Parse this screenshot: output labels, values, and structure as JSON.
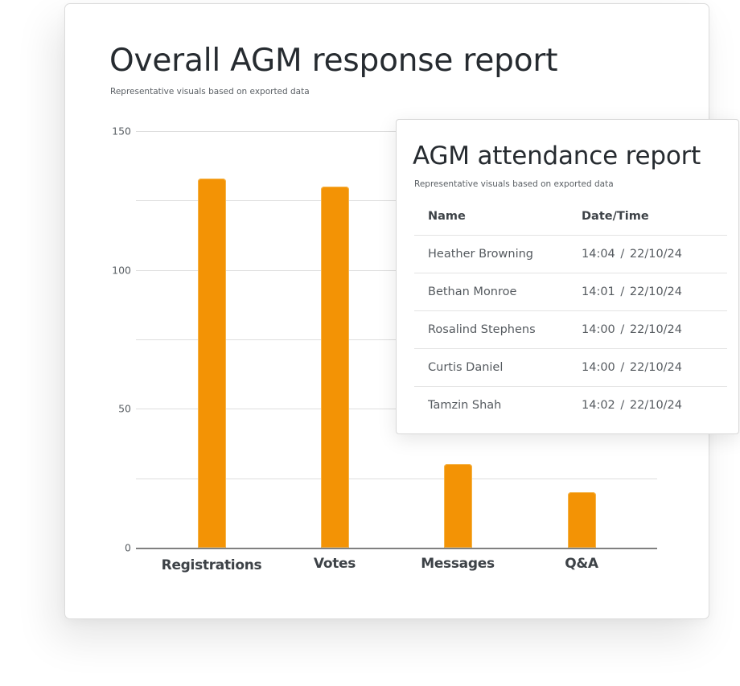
{
  "main_card": {
    "title": "Overall AGM response report",
    "subtitle": "Representative visuals based on exported data"
  },
  "chart_data": {
    "type": "bar",
    "title": "Overall AGM response report",
    "subtitle": "Representative visuals based on exported data",
    "categories": [
      "Registrations",
      "Votes",
      "Messages",
      "Q&A"
    ],
    "values": [
      133,
      130,
      30,
      20
    ],
    "xlabel": "",
    "ylabel": "",
    "ylim": [
      0,
      150
    ],
    "yticks": [
      0,
      50,
      100,
      150
    ],
    "ytick_labels": [
      "0",
      "50",
      "100",
      "150"
    ],
    "gridlines": [
      0,
      25,
      50,
      75,
      100,
      125,
      150
    ],
    "grid": true,
    "legend": null,
    "bar_color": "#f39305"
  },
  "attendance_card": {
    "title": "AGM attendance report",
    "subtitle": "Representative visuals based on exported data",
    "columns": [
      "Name",
      "Date/Time"
    ],
    "rows": [
      {
        "name": "Heather Browning",
        "datetime": "14:04  /  22/10/24"
      },
      {
        "name": "Bethan Monroe",
        "datetime": "14:01  /  22/10/24"
      },
      {
        "name": "Rosalind Stephens",
        "datetime": "14:00  /  22/10/24"
      },
      {
        "name": "Curtis Daniel",
        "datetime": "14:00  /  22/10/24"
      },
      {
        "name": "Tamzin Shah",
        "datetime": "14:02  /  22/10/24"
      }
    ]
  }
}
